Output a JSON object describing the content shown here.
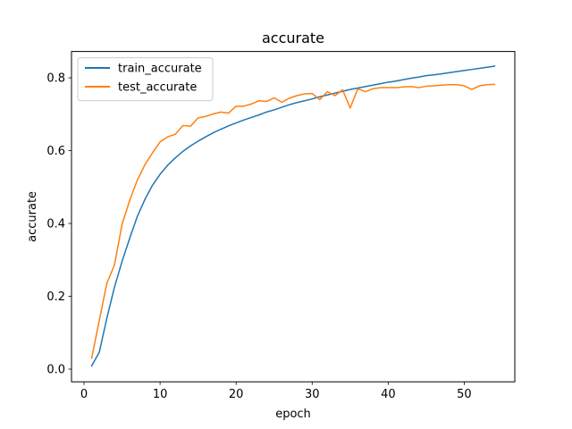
{
  "chart_data": {
    "type": "line",
    "title": "accurate",
    "xlabel": "epoch",
    "ylabel": "accurate",
    "xlim": [
      -1.65,
      56.65
    ],
    "ylim": [
      -0.0348,
      0.8723
    ],
    "xticks": [
      0,
      10,
      20,
      30,
      40,
      50
    ],
    "yticks": [
      0.0,
      0.2,
      0.4,
      0.6,
      0.8
    ],
    "xtick_labels": [
      "0",
      "10",
      "20",
      "30",
      "40",
      "50"
    ],
    "ytick_labels": [
      "0.0",
      "0.2",
      "0.4",
      "0.6",
      "0.8"
    ],
    "grid": false,
    "legend_position": "upper-left",
    "x": [
      1,
      2,
      3,
      4,
      5,
      6,
      7,
      8,
      9,
      10,
      11,
      12,
      13,
      14,
      15,
      16,
      17,
      18,
      19,
      20,
      21,
      22,
      23,
      24,
      25,
      26,
      27,
      28,
      29,
      30,
      31,
      32,
      33,
      34,
      35,
      36,
      37,
      38,
      39,
      40,
      41,
      42,
      43,
      44,
      45,
      46,
      47,
      48,
      49,
      50,
      51,
      52,
      53,
      54
    ],
    "series": [
      {
        "name": "train_accurate",
        "color": "#1f77b4",
        "values": [
          0.009,
          0.046,
          0.14,
          0.225,
          0.296,
          0.359,
          0.419,
          0.466,
          0.505,
          0.535,
          0.56,
          0.58,
          0.598,
          0.613,
          0.626,
          0.638,
          0.649,
          0.659,
          0.668,
          0.676,
          0.684,
          0.691,
          0.698,
          0.706,
          0.712,
          0.719,
          0.726,
          0.732,
          0.737,
          0.742,
          0.748,
          0.753,
          0.758,
          0.763,
          0.768,
          0.772,
          0.776,
          0.78,
          0.784,
          0.788,
          0.791,
          0.795,
          0.799,
          0.802,
          0.806,
          0.808,
          0.811,
          0.814,
          0.817,
          0.82,
          0.823,
          0.826,
          0.829,
          0.832
        ]
      },
      {
        "name": "test_accurate",
        "color": "#ff7f0e",
        "values": [
          0.03,
          0.133,
          0.236,
          0.286,
          0.398,
          0.463,
          0.519,
          0.561,
          0.594,
          0.624,
          0.638,
          0.645,
          0.669,
          0.667,
          0.69,
          0.694,
          0.701,
          0.706,
          0.703,
          0.722,
          0.722,
          0.728,
          0.737,
          0.735,
          0.745,
          0.733,
          0.744,
          0.751,
          0.756,
          0.757,
          0.74,
          0.762,
          0.751,
          0.767,
          0.717,
          0.77,
          0.762,
          0.77,
          0.773,
          0.773,
          0.773,
          0.775,
          0.776,
          0.773,
          0.777,
          0.778,
          0.78,
          0.781,
          0.781,
          0.778,
          0.768,
          0.778,
          0.781,
          0.782
        ]
      }
    ]
  }
}
